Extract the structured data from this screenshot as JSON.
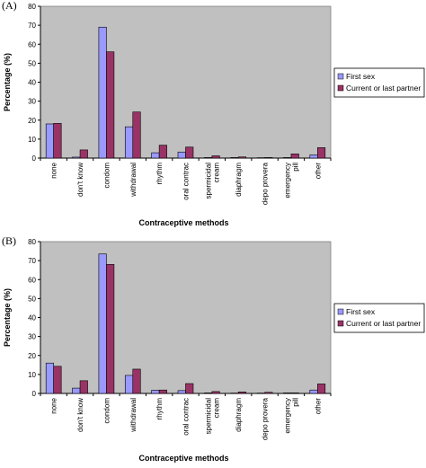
{
  "chart_data": [
    {
      "type": "bar",
      "panel_label": "(A)",
      "title": "",
      "xlabel": "Contraceptive methods",
      "ylabel": "Percentage (%)",
      "ylim": [
        0,
        80
      ],
      "yticks": [
        0,
        10,
        20,
        30,
        40,
        50,
        60,
        70,
        80
      ],
      "grid": false,
      "legend_position": "right",
      "categories": [
        "none",
        "don't know",
        "condom",
        "withdrawal",
        "rhythm",
        "oral contrac",
        "spermicidal cream",
        "diaphragm",
        "depo provera",
        "emergency pill",
        "other"
      ],
      "category_lines": [
        [
          "none"
        ],
        [
          "don't know"
        ],
        [
          "condom"
        ],
        [
          "withdrawal"
        ],
        [
          "rhythm"
        ],
        [
          "oral contrac"
        ],
        [
          "spermicidal",
          "cream"
        ],
        [
          "diaphragm"
        ],
        [
          "depo provera"
        ],
        [
          "emergency",
          "pill"
        ],
        [
          "other"
        ]
      ],
      "series": [
        {
          "name": "First sex",
          "color": "#9999ff",
          "values": [
            18,
            0.5,
            69,
            16.5,
            2.8,
            3.2,
            0.3,
            0.3,
            0.2,
            0.3,
            1.7
          ]
        },
        {
          "name": "Current or last partner",
          "color": "#993366",
          "values": [
            18.3,
            4.3,
            56,
            24.3,
            6.8,
            5.8,
            1.2,
            0.6,
            0.3,
            2.2,
            5.5
          ]
        }
      ]
    },
    {
      "type": "bar",
      "panel_label": "(B)",
      "title": "",
      "xlabel": "Contraceptive methods",
      "ylabel": "Percentage (%)",
      "ylim": [
        0,
        80
      ],
      "yticks": [
        0,
        10,
        20,
        30,
        40,
        50,
        60,
        70,
        80
      ],
      "grid": false,
      "legend_position": "right",
      "categories": [
        "none",
        "don't know",
        "condom",
        "withdrawal",
        "rhythm",
        "oral contrac",
        "spermicidal cream",
        "diaphragm",
        "depo provera",
        "emergency pill",
        "other"
      ],
      "category_lines": [
        [
          "none"
        ],
        [
          "don't know"
        ],
        [
          "condom"
        ],
        [
          "withdrawal"
        ],
        [
          "rhythm"
        ],
        [
          "oral contrac"
        ],
        [
          "spermicidal",
          "cream"
        ],
        [
          "diaphragm"
        ],
        [
          "depo provera"
        ],
        [
          "emergency",
          "pill"
        ],
        [
          "other"
        ]
      ],
      "series": [
        {
          "name": "First sex",
          "color": "#9999ff",
          "values": [
            16,
            2.8,
            73.5,
            9.5,
            1.7,
            1.5,
            0.3,
            0.2,
            0.2,
            0.3,
            1.8
          ]
        },
        {
          "name": "Current or last partner",
          "color": "#993366",
          "values": [
            14.3,
            6.7,
            68,
            12.8,
            1.8,
            5.2,
            1,
            0.8,
            0.6,
            0.3,
            5
          ]
        }
      ]
    }
  ],
  "colors": {
    "plot_background": "#c0c0c0",
    "first_sex": "#9999ff",
    "current_partner": "#993366"
  }
}
